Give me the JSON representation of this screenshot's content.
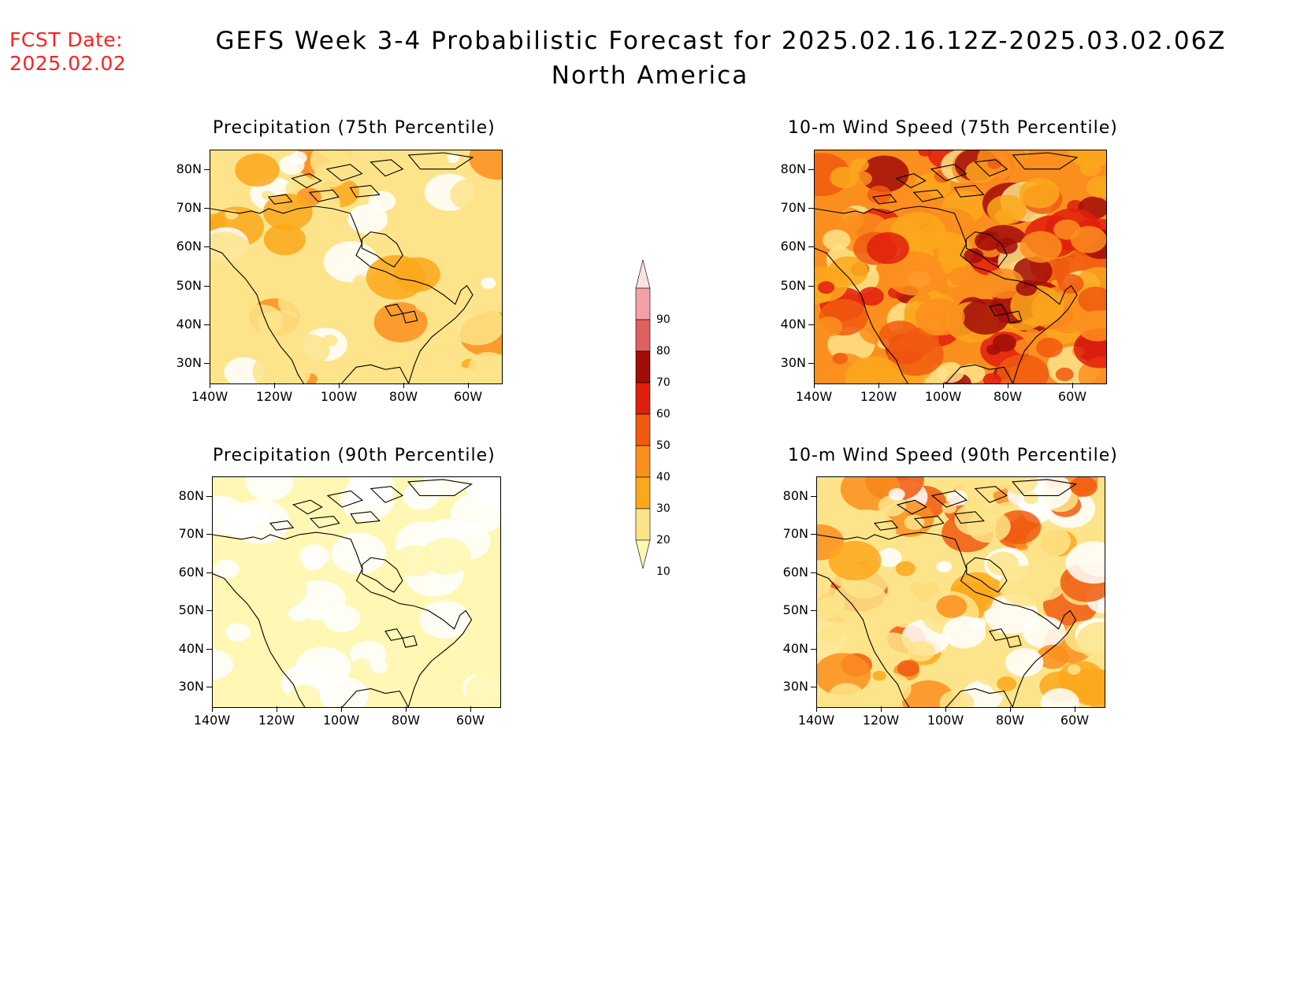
{
  "header": {
    "fcst_label": "FCST Date:",
    "fcst_date": "2025.02.02",
    "title_line1": "GEFS Week 3-4 Probabilistic Forecast for 2025.02.16.12Z-2025.03.02.06Z",
    "title_line2": "North America"
  },
  "axes": {
    "lat_labels": [
      "80N",
      "70N",
      "60N",
      "50N",
      "40N",
      "30N"
    ],
    "lon_labels": [
      "140W",
      "120W",
      "100W",
      "80W",
      "60W"
    ]
  },
  "panels": [
    {
      "id": "precip75",
      "title": "Precipitation (75th Percentile)",
      "base_color": "#fde48a",
      "intensity": 1
    },
    {
      "id": "wind75",
      "title": "10-m Wind Speed (75th Percentile)",
      "base_color": "#fb8f1e",
      "intensity": 3
    },
    {
      "id": "precip90",
      "title": "Precipitation (90th Percentile)",
      "base_color": "#fff7b3",
      "intensity": 0
    },
    {
      "id": "wind90",
      "title": "10-m Wind Speed (90th Percentile)",
      "base_color": "#fde48a",
      "intensity": 2
    }
  ],
  "colorbar": {
    "levels": [
      "10",
      "20",
      "30",
      "40",
      "50",
      "60",
      "70",
      "80",
      "90"
    ],
    "colors": [
      "#fff7b3",
      "#fde48a",
      "#fba81c",
      "#fb8f1e",
      "#f05a0f",
      "#e01e0e",
      "#a20c09",
      "#e06060",
      "#f4a0a8",
      "#fde0e4"
    ]
  }
}
